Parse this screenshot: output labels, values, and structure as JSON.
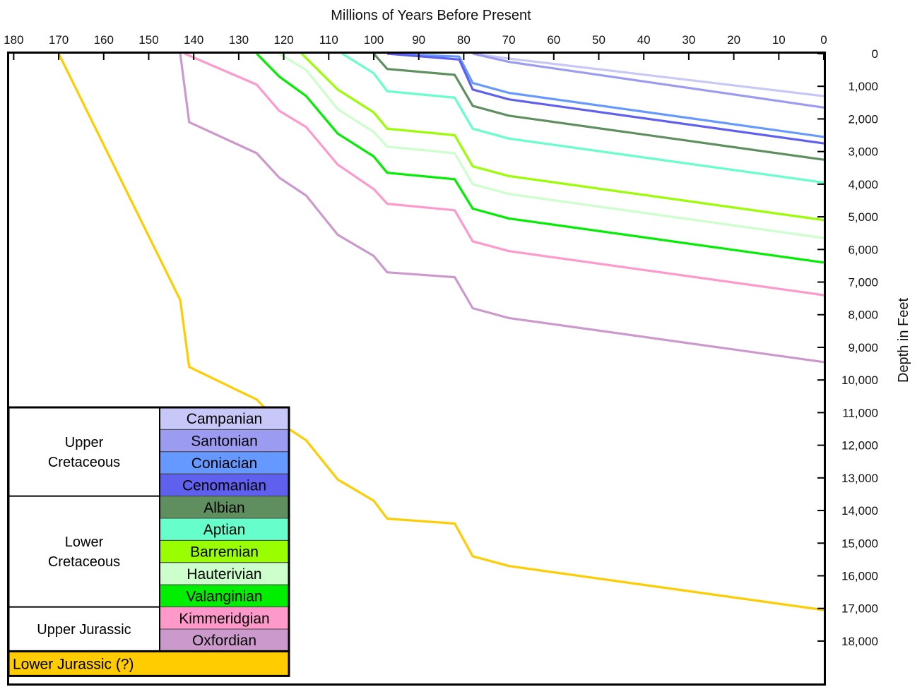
{
  "chart_data": {
    "type": "line",
    "xlabel": "Millions of Years Before Present",
    "ylabel": "Depth in Feet",
    "xlim": [
      181,
      0
    ],
    "ylim": [
      0,
      19300
    ],
    "x_ticks": [
      180,
      170,
      160,
      150,
      140,
      130,
      120,
      110,
      100,
      90,
      80,
      70,
      60,
      50,
      40,
      30,
      20,
      10,
      0
    ],
    "x_tick_labels": [
      "180",
      "170",
      "160",
      "150",
      "140",
      "130",
      "120",
      "110",
      "100",
      "90",
      "80",
      "70",
      "60",
      "50",
      "40",
      "30",
      "20",
      "10",
      "0"
    ],
    "y_ticks": [
      0,
      1000,
      2000,
      3000,
      4000,
      5000,
      6000,
      7000,
      8000,
      9000,
      10000,
      11000,
      12000,
      13000,
      14000,
      15000,
      16000,
      17000,
      18000
    ],
    "y_tick_labels": [
      "0",
      "1,000",
      "2,000",
      "3,000",
      "4,000",
      "5,000",
      "6,000",
      "7,000",
      "8,000",
      "9,000",
      "10,000",
      "11,000",
      "12,000",
      "13,000",
      "14,000",
      "15,000",
      "16,000",
      "17,000",
      "18,000"
    ],
    "series": [
      {
        "name": "Campanian",
        "color": "#c8c8f8",
        "points": [
          [
            78,
            0
          ],
          [
            70,
            150
          ],
          [
            0,
            1300
          ]
        ]
      },
      {
        "name": "Santonian",
        "color": "#9b9bf2",
        "points": [
          [
            78,
            0
          ],
          [
            70,
            250
          ],
          [
            0,
            1650
          ]
        ]
      },
      {
        "name": "Coniacian",
        "color": "#6699ff",
        "points": [
          [
            97,
            0
          ],
          [
            81,
            90
          ],
          [
            78,
            900
          ],
          [
            70,
            1200
          ],
          [
            0,
            2550
          ]
        ]
      },
      {
        "name": "Cenomanian",
        "color": "#6060ee",
        "points": [
          [
            97,
            0
          ],
          [
            81,
            180
          ],
          [
            78,
            1100
          ],
          [
            70,
            1400
          ],
          [
            0,
            2750
          ]
        ]
      },
      {
        "name": "Albian",
        "color": "#5f8f5f",
        "points": [
          [
            100,
            0
          ],
          [
            97,
            470
          ],
          [
            82,
            650
          ],
          [
            78,
            1600
          ],
          [
            70,
            1900
          ],
          [
            0,
            3250
          ]
        ]
      },
      {
        "name": "Aptian",
        "color": "#66ffcc",
        "points": [
          [
            107,
            0
          ],
          [
            100,
            600
          ],
          [
            97,
            1150
          ],
          [
            82,
            1350
          ],
          [
            78,
            2300
          ],
          [
            70,
            2600
          ],
          [
            0,
            3950
          ]
        ]
      },
      {
        "name": "Barremian",
        "color": "#99ff00",
        "points": [
          [
            116,
            0
          ],
          [
            108,
            1100
          ],
          [
            100,
            1800
          ],
          [
            97,
            2300
          ],
          [
            82,
            2500
          ],
          [
            78,
            3450
          ],
          [
            70,
            3750
          ],
          [
            0,
            5100
          ]
        ]
      },
      {
        "name": "Hauterivian",
        "color": "#ccffcc",
        "points": [
          [
            121,
            0
          ],
          [
            115,
            500
          ],
          [
            108,
            1700
          ],
          [
            100,
            2400
          ],
          [
            97,
            2850
          ],
          [
            82,
            3050
          ],
          [
            78,
            4000
          ],
          [
            70,
            4300
          ],
          [
            0,
            5650
          ]
        ]
      },
      {
        "name": "Valanginian",
        "color": "#00ee00",
        "points": [
          [
            126,
            0
          ],
          [
            121,
            700
          ],
          [
            115,
            1300
          ],
          [
            108,
            2450
          ],
          [
            100,
            3150
          ],
          [
            97,
            3650
          ],
          [
            82,
            3850
          ],
          [
            78,
            4750
          ],
          [
            70,
            5050
          ],
          [
            0,
            6400
          ]
        ]
      },
      {
        "name": "Kimmeridgian",
        "color": "#ff99cc",
        "points": [
          [
            142,
            0
          ],
          [
            126,
            950
          ],
          [
            121,
            1750
          ],
          [
            115,
            2250
          ],
          [
            108,
            3400
          ],
          [
            100,
            4150
          ],
          [
            97,
            4600
          ],
          [
            82,
            4800
          ],
          [
            78,
            5750
          ],
          [
            70,
            6050
          ],
          [
            0,
            7400
          ]
        ]
      },
      {
        "name": "Oxfordian",
        "color": "#cc99cc",
        "points": [
          [
            143,
            0
          ],
          [
            141,
            2100
          ],
          [
            126,
            3050
          ],
          [
            121,
            3800
          ],
          [
            115,
            4350
          ],
          [
            108,
            5550
          ],
          [
            100,
            6200
          ],
          [
            97,
            6700
          ],
          [
            82,
            6850
          ],
          [
            78,
            7800
          ],
          [
            70,
            8100
          ],
          [
            0,
            9450
          ]
        ]
      },
      {
        "name": "Lower Jurassic (?)",
        "color": "#ffcc00",
        "points": [
          [
            170,
            0
          ],
          [
            143,
            7550
          ],
          [
            141,
            9600
          ],
          [
            126,
            10600
          ],
          [
            121,
            11300
          ],
          [
            115,
            11850
          ],
          [
            108,
            13050
          ],
          [
            100,
            13700
          ],
          [
            97,
            14250
          ],
          [
            82,
            14400
          ],
          [
            78,
            15400
          ],
          [
            70,
            15700
          ],
          [
            0,
            17050
          ]
        ]
      }
    ],
    "legend": {
      "position": "bottom-left",
      "groups": [
        {
          "label": [
            "Upper",
            "Cretaceous"
          ],
          "entries": [
            "Campanian",
            "Santonian",
            "Coniacian",
            "Cenomanian"
          ]
        },
        {
          "label": [
            "Lower",
            "Cretaceous"
          ],
          "entries": [
            "Albian",
            "Aptian",
            "Barremian",
            "Hauterivian",
            "Valanginian"
          ]
        },
        {
          "label": [
            "Upper Jurassic"
          ],
          "entries": [
            "Kimmeridgian",
            "Oxfordian"
          ]
        }
      ],
      "footer": "Lower Jurassic (?)"
    }
  }
}
